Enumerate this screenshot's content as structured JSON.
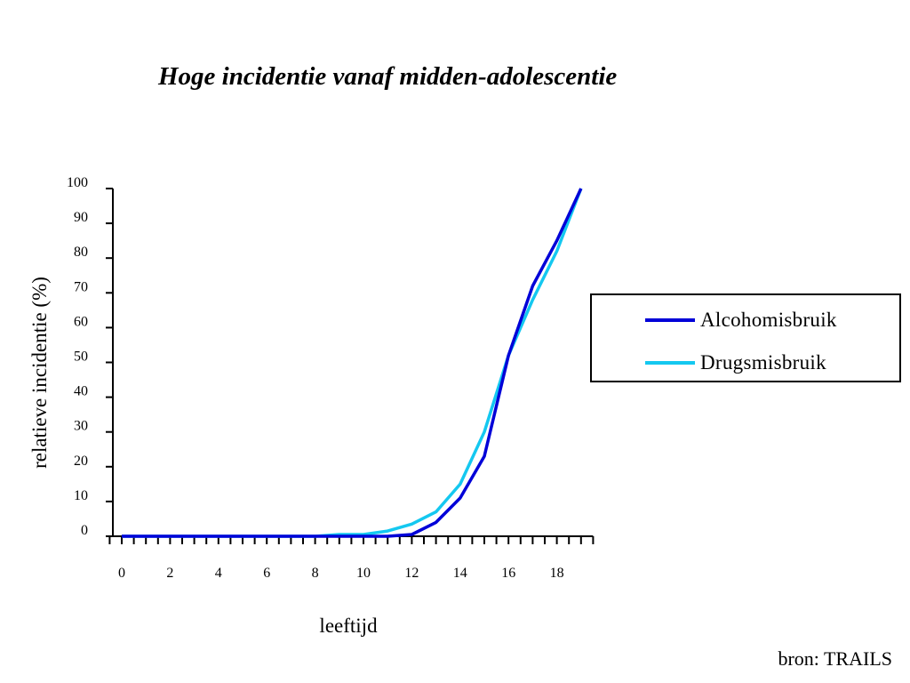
{
  "chart_data": {
    "type": "line",
    "title": "Hoge incidentie vanaf midden-adolescentie",
    "xlabel": "leeftijd",
    "ylabel": "relatieve incidentie (%)",
    "x": [
      0,
      1,
      2,
      3,
      4,
      5,
      6,
      7,
      8,
      9,
      10,
      11,
      12,
      13,
      14,
      15,
      16,
      17,
      18,
      19
    ],
    "x_tick_labels": [
      "0",
      "2",
      "4",
      "6",
      "8",
      "10",
      "12",
      "14",
      "16",
      "18"
    ],
    "y_tick_labels": [
      "0",
      "10",
      "20",
      "30",
      "40",
      "50",
      "60",
      "70",
      "80",
      "90",
      "100"
    ],
    "xlim": [
      -0.8,
      19.5
    ],
    "ylim": [
      0,
      100
    ],
    "grid": false,
    "legend_position": "right",
    "series": [
      {
        "name": "Alcohomisbruik",
        "color": "#0000d8",
        "values": [
          0,
          0,
          0,
          0,
          0,
          0,
          0,
          0,
          0,
          0,
          0,
          0,
          0.5,
          4,
          11,
          23,
          52,
          72,
          85,
          100
        ]
      },
      {
        "name": "Drugsmisbruik",
        "color": "#14c8f0",
        "values": [
          0,
          0,
          0,
          0,
          0,
          0,
          0,
          0,
          0,
          0.5,
          0.5,
          1.5,
          3.5,
          7,
          15,
          30,
          52,
          68,
          82,
          100
        ]
      }
    ]
  },
  "source": "bron: TRAILS"
}
